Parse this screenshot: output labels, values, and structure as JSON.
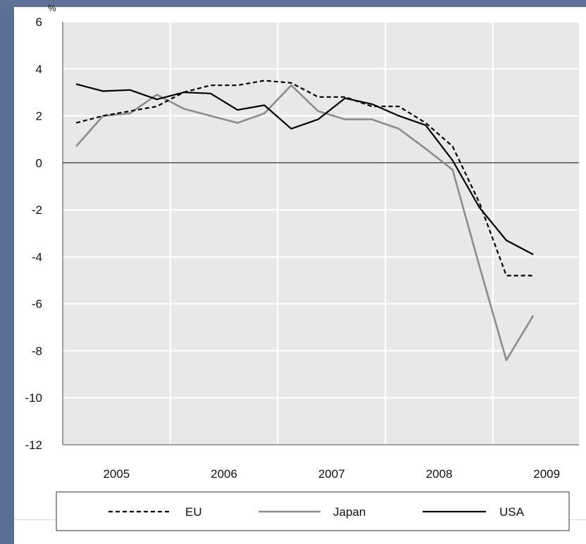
{
  "colors": {
    "slide_background": "#5b6e93",
    "plot_background": "#e8e8e8",
    "gridline": "#ffffff",
    "eu": "#000000",
    "japan": "#8c8c8c",
    "usa": "#000000"
  },
  "chart_data": {
    "type": "line",
    "title": "",
    "xlabel": "",
    "ylabel": "%",
    "ylim": [
      -12,
      6
    ],
    "yticks": [
      6,
      4,
      2,
      0,
      -2,
      -4,
      -6,
      -8,
      -10,
      -12
    ],
    "xlim": [
      2004.5,
      2009.3
    ],
    "xticks": [
      "2005",
      "2006",
      "2007",
      "2008",
      "2009"
    ],
    "grid": true,
    "legend_position": "bottom",
    "x": [
      2004.625,
      2004.875,
      2005.125,
      2005.375,
      2005.625,
      2005.875,
      2006.125,
      2006.375,
      2006.625,
      2006.875,
      2007.125,
      2007.375,
      2007.625,
      2007.875,
      2008.125,
      2008.375,
      2008.625,
      2008.875
    ],
    "series": [
      {
        "name": "EU",
        "style": "dashed",
        "values": [
          1.7,
          2.0,
          2.2,
          2.4,
          3.0,
          3.3,
          3.3,
          3.5,
          3.4,
          2.8,
          2.8,
          2.4,
          2.4,
          1.7,
          0.7,
          -1.7,
          -4.8,
          -4.8
        ]
      },
      {
        "name": "Japan",
        "style": "solid",
        "values": [
          0.7,
          2.0,
          2.1,
          2.9,
          2.3,
          2.0,
          1.7,
          2.1,
          3.3,
          2.2,
          1.85,
          1.85,
          1.45,
          0.6,
          -0.3,
          -4.4,
          -8.4,
          -6.5
        ]
      },
      {
        "name": "USA",
        "style": "solid",
        "values": [
          3.35,
          3.05,
          3.1,
          2.7,
          3.0,
          2.95,
          2.25,
          2.45,
          1.45,
          1.85,
          2.75,
          2.5,
          2.0,
          1.6,
          0.1,
          -1.9,
          -3.3,
          -3.9
        ]
      }
    ]
  }
}
